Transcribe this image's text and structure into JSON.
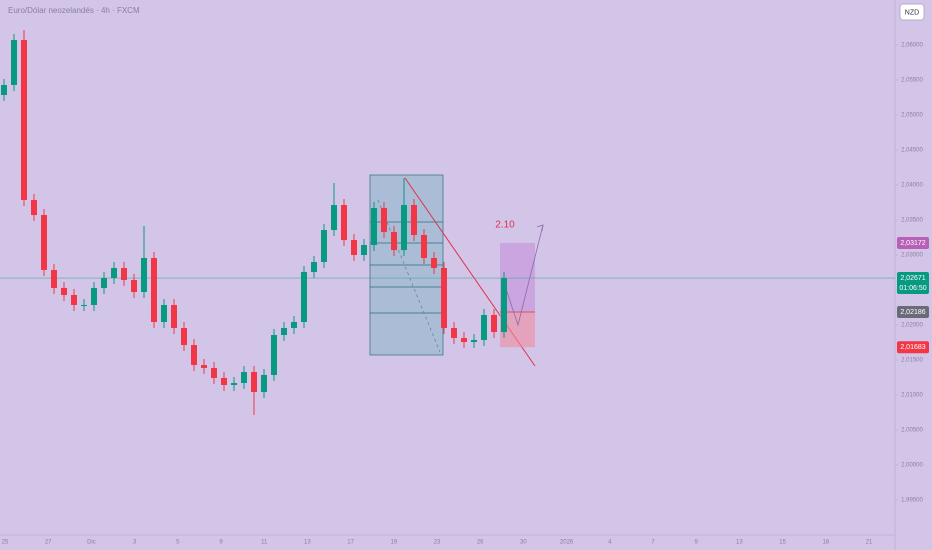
{
  "header": {
    "title": "Euro/Dólar neozelandés · 4h · FXCM",
    "currency": "NZD"
  },
  "chart_data": {
    "type": "candlestick",
    "up_color": "#089981",
    "down_color": "#f23645",
    "x_labels": [
      "25",
      "27",
      "Dic",
      "3",
      "5",
      "9",
      "11",
      "13",
      "17",
      "19",
      "23",
      "26",
      "30",
      "2026",
      "4",
      "7",
      "9",
      "13",
      "15",
      "18",
      "21"
    ],
    "ylim": [
      1.99,
      2.06643
    ],
    "yticks": [
      {
        "value": 2.06,
        "label": "2,06000"
      },
      {
        "value": 2.055,
        "label": "2,05500"
      },
      {
        "value": 2.05,
        "label": "2,05000"
      },
      {
        "value": 2.045,
        "label": "2,04500"
      },
      {
        "value": 2.04,
        "label": "2,04000"
      },
      {
        "value": 2.035,
        "label": "2,03500"
      },
      {
        "value": 2.03,
        "label": "2,03000"
      },
      {
        "value": 2.025,
        "label": "2,02500"
      },
      {
        "value": 2.02,
        "label": "2,02000"
      },
      {
        "value": 2.015,
        "label": "2,01500"
      },
      {
        "value": 2.01,
        "label": "2,01000"
      },
      {
        "value": 2.005,
        "label": "2,00500"
      },
      {
        "value": 2.0,
        "label": "2,00000"
      },
      {
        "value": 1.995,
        "label": "1,99500"
      }
    ],
    "open": [
      2.05286,
      2.05429,
      2.06071,
      2.03786,
      2.03571,
      2.02786,
      2.02529,
      2.02429,
      2.02286,
      2.02286,
      2.02529,
      2.02671,
      2.02814,
      2.02643,
      2.02471,
      2.02957,
      2.02043,
      2.02286,
      2.01957,
      2.01714,
      2.01429,
      2.01386,
      2.01243,
      2.01143,
      2.01171,
      2.01329,
      2.01043,
      2.01286,
      2.01857,
      2.01957,
      2.02043,
      2.02757,
      2.029,
      2.03357,
      2.03714,
      2.03214,
      2.03,
      2.03143,
      2.03671,
      2.03329,
      2.03071,
      2.03714,
      2.03286,
      2.02957,
      2.02814,
      2.01957,
      2.01814,
      2.01757,
      2.01786,
      2.02143,
      2.019
    ],
    "high": [
      2.05514,
      2.06157,
      2.06214,
      2.03871,
      2.03657,
      2.02871,
      2.02614,
      2.02514,
      2.02371,
      2.02614,
      2.02757,
      2.029,
      2.029,
      2.02729,
      2.03414,
      2.03043,
      2.02371,
      2.02371,
      2.02043,
      2.018,
      2.01514,
      2.01471,
      2.01329,
      2.01257,
      2.01414,
      2.01414,
      2.01371,
      2.01943,
      2.02043,
      2.02129,
      2.02843,
      2.02986,
      2.03443,
      2.04029,
      2.038,
      2.033,
      2.03229,
      2.03757,
      2.03757,
      2.03414,
      2.041,
      2.038,
      2.03371,
      2.03043,
      2.029,
      2.02043,
      2.019,
      2.01871,
      2.02229,
      2.02229,
      2.02757
    ],
    "low": [
      2.052,
      2.05343,
      2.037,
      2.03486,
      2.027,
      2.02443,
      2.02343,
      2.022,
      2.022,
      2.022,
      2.02443,
      2.02586,
      2.02557,
      2.02386,
      2.02386,
      2.01957,
      2.01957,
      2.01871,
      2.01629,
      2.01343,
      2.013,
      2.01157,
      2.01057,
      2.01057,
      2.01086,
      2.00714,
      2.00957,
      2.012,
      2.01771,
      2.01871,
      2.01957,
      2.02671,
      2.02814,
      2.03271,
      2.03129,
      2.02914,
      2.02914,
      2.03057,
      2.03243,
      2.02986,
      2.02986,
      2.032,
      2.02871,
      2.02729,
      2.01871,
      2.01729,
      2.01671,
      2.01671,
      2.017,
      2.01814,
      2.01814
    ],
    "close": [
      2.05429,
      2.06071,
      2.03786,
      2.03571,
      2.02786,
      2.02529,
      2.02429,
      2.02286,
      2.02286,
      2.02529,
      2.02671,
      2.02814,
      2.02643,
      2.02471,
      2.02957,
      2.02043,
      2.02286,
      2.01957,
      2.01714,
      2.01429,
      2.01386,
      2.01243,
      2.01143,
      2.01171,
      2.01329,
      2.01043,
      2.01286,
      2.01857,
      2.01957,
      2.02043,
      2.02757,
      2.029,
      2.03357,
      2.03714,
      2.03214,
      2.03,
      2.03143,
      2.03671,
      2.03329,
      2.03071,
      2.03714,
      2.03286,
      2.02957,
      2.02814,
      2.01957,
      2.01814,
      2.01757,
      2.01786,
      2.02143,
      2.019,
      2.02671
    ],
    "price_labels": [
      {
        "value": 2.03172,
        "label": "2,03172",
        "color": "#b760b5"
      },
      {
        "value": 2.02671,
        "label": "2,02671",
        "sub": "01:06:50",
        "color": "#089981"
      },
      {
        "value": 2.02186,
        "label": "2,02186",
        "color": "#6a6a78"
      },
      {
        "value": 2.01683,
        "label": "2,01683",
        "color": "#f23645"
      }
    ],
    "annotations": [
      {
        "text": "2.10"
      }
    ]
  }
}
